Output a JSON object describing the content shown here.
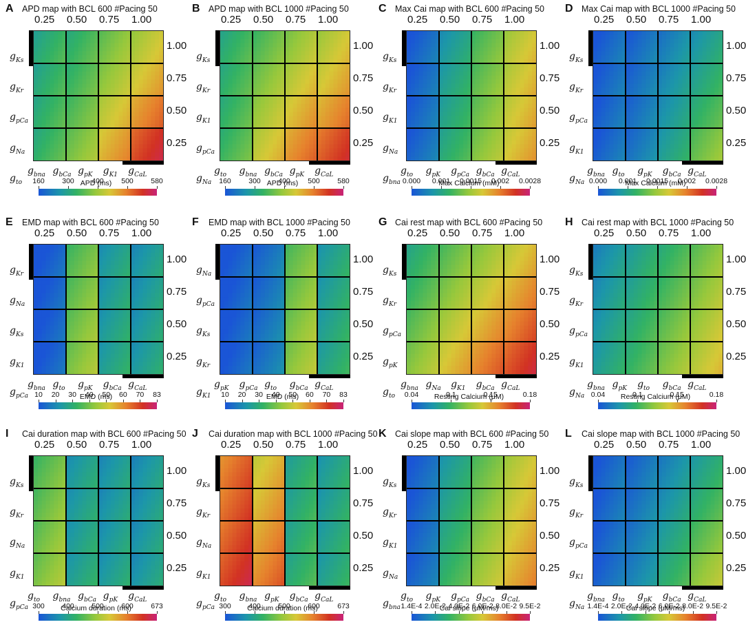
{
  "colors": {
    "blue": "#1a55d6",
    "teal": "#1f9e8a",
    "green": "#3fbf4a",
    "yellow": "#c9c13a",
    "orange": "#e07a2a",
    "red": "#cf2f22",
    "magenta": "#c7247a"
  },
  "chart_data": [
    {
      "panel": "A",
      "type": "heatmap",
      "title": "APD map with BCL 600 #Pacing 50",
      "top_ticks": [
        "0.25",
        "0.50",
        "0.75",
        "1.00"
      ],
      "right_ticks": [
        "1.00",
        "0.75",
        "0.50",
        "0.25"
      ],
      "left_vars": [
        "K",
        "s",
        "K",
        "r",
        "p",
        "Ca",
        "Na"
      ],
      "left_labels": [
        [
          "Ks"
        ],
        [
          "Kr"
        ],
        [
          "pCa"
        ],
        [
          "Na"
        ],
        [
          "to"
        ]
      ],
      "bottom_labels": [
        [
          "bna"
        ],
        [
          "bCa"
        ],
        [
          "pK"
        ],
        [
          "K1"
        ],
        [
          "CaL"
        ]
      ],
      "colorbar": {
        "label": "APD (ms)",
        "ticks": [
          "160",
          "300",
          "400",
          "500",
          "580"
        ]
      },
      "intensity": [
        [
          0.3,
          0.34,
          0.45,
          0.55
        ],
        [
          0.3,
          0.36,
          0.5,
          0.62
        ],
        [
          0.32,
          0.4,
          0.58,
          0.72
        ],
        [
          0.33,
          0.45,
          0.66,
          0.85
        ]
      ]
    },
    {
      "panel": "B",
      "type": "heatmap",
      "title": "APD map with BCL 1000 #Pacing 50",
      "top_ticks": [
        "0.25",
        "0.50",
        "0.75",
        "1.00"
      ],
      "right_ticks": [
        "1.00",
        "0.75",
        "0.50",
        "0.25"
      ],
      "left_labels": [
        [
          "Ks"
        ],
        [
          "Kr"
        ],
        [
          "K1"
        ],
        [
          "pCa"
        ],
        [
          "Na"
        ]
      ],
      "bottom_labels": [
        [
          "to"
        ],
        [
          "bna"
        ],
        [
          "bCa"
        ],
        [
          "pK"
        ],
        [
          "CaL"
        ]
      ],
      "colorbar": {
        "label": "APD (ms)",
        "ticks": [
          "160",
          "300",
          "400",
          "500",
          "580"
        ]
      },
      "intensity": [
        [
          0.32,
          0.4,
          0.5,
          0.56
        ],
        [
          0.33,
          0.46,
          0.57,
          0.62
        ],
        [
          0.34,
          0.52,
          0.64,
          0.7
        ],
        [
          0.36,
          0.58,
          0.72,
          0.82
        ]
      ]
    },
    {
      "panel": "C",
      "type": "heatmap",
      "title": "Max Cai map with BCL 600 #Pacing 50",
      "top_ticks": [
        "0.25",
        "0.50",
        "0.75",
        "1.00"
      ],
      "right_ticks": [
        "1.00",
        "0.75",
        "0.50",
        "0.25"
      ],
      "left_labels": [
        [
          "Ks"
        ],
        [
          "Kr"
        ],
        [
          "K1"
        ],
        [
          "Na"
        ],
        [
          "bna"
        ]
      ],
      "bottom_labels": [
        [
          "to"
        ],
        [
          "pK"
        ],
        [
          "pCa"
        ],
        [
          "bCa"
        ],
        [
          "CaL"
        ]
      ],
      "colorbar": {
        "label": "Max Calcium (mM)",
        "ticks": [
          "0.000",
          "0.001",
          "0.0015",
          "0.002",
          "0.0028"
        ]
      },
      "intensity": [
        [
          0.05,
          0.22,
          0.4,
          0.56
        ],
        [
          0.05,
          0.25,
          0.42,
          0.58
        ],
        [
          0.06,
          0.27,
          0.44,
          0.6
        ],
        [
          0.06,
          0.3,
          0.47,
          0.62
        ]
      ]
    },
    {
      "panel": "D",
      "type": "heatmap",
      "title": "Max Cai map with BCL 1000 #Pacing 50",
      "top_ticks": [
        "0.25",
        "0.50",
        "0.75",
        "1.00"
      ],
      "right_ticks": [
        "1.00",
        "0.75",
        "0.50",
        "0.25"
      ],
      "left_labels": [
        [
          "Ks"
        ],
        [
          "Kr"
        ],
        [
          "pCa"
        ],
        [
          "K1"
        ],
        [
          "Na"
        ]
      ],
      "bottom_labels": [
        [
          "bna"
        ],
        [
          "to"
        ],
        [
          "pK"
        ],
        [
          "bCa"
        ],
        [
          "CaL"
        ]
      ],
      "colorbar": {
        "label": "Max Calcium (mM)",
        "ticks": [
          "0.000",
          "0.001",
          "0.0015",
          "0.002",
          "0.0028"
        ]
      },
      "intensity": [
        [
          0.05,
          0.07,
          0.14,
          0.22
        ],
        [
          0.05,
          0.08,
          0.17,
          0.27
        ],
        [
          0.05,
          0.09,
          0.2,
          0.33
        ],
        [
          0.05,
          0.1,
          0.24,
          0.42
        ]
      ]
    },
    {
      "panel": "E",
      "type": "heatmap",
      "title": "EMD map with BCL 600 #Pacing 50",
      "top_ticks": [
        "0.25",
        "0.50",
        "0.75",
        "1.00"
      ],
      "right_ticks": [
        "1.00",
        "0.75",
        "0.50",
        "0.25"
      ],
      "left_labels": [
        [
          "Kr"
        ],
        [
          "Na"
        ],
        [
          "Ks"
        ],
        [
          "K1"
        ],
        [
          "pCa"
        ]
      ],
      "bottom_labels": [
        [
          "bna"
        ],
        [
          "to"
        ],
        [
          "pK"
        ],
        [
          "bCa"
        ],
        [
          "CaL"
        ]
      ],
      "colorbar": {
        "label": "EMD (ms)",
        "ticks": [
          "10",
          "20",
          "30",
          "40",
          "50",
          "60",
          "70",
          "83"
        ]
      },
      "intensity": [
        [
          0.02,
          0.4,
          0.22,
          0.2
        ],
        [
          0.02,
          0.42,
          0.22,
          0.2
        ],
        [
          0.02,
          0.44,
          0.23,
          0.21
        ],
        [
          0.02,
          0.46,
          0.24,
          0.22
        ]
      ]
    },
    {
      "panel": "F",
      "type": "heatmap",
      "title": "EMD map with BCL 1000 #Pacing 50",
      "top_ticks": [
        "0.25",
        "0.50",
        "0.75",
        "1.00"
      ],
      "right_ticks": [
        "1.00",
        "0.75",
        "0.50",
        "0.25"
      ],
      "left_labels": [
        [
          "Na"
        ],
        [
          "pCa"
        ],
        [
          "Ks"
        ],
        [
          "Kr"
        ],
        [
          "K1"
        ]
      ],
      "bottom_labels": [
        [
          "pK"
        ],
        [
          "pCa"
        ],
        [
          "to"
        ],
        [
          "bCa"
        ],
        [
          "CaL"
        ]
      ],
      "colorbar": {
        "label": "EMD (ms)",
        "ticks": [
          "10",
          "20",
          "30",
          "40",
          "50",
          "60",
          "70",
          "83"
        ]
      },
      "intensity": [
        [
          0.02,
          0.08,
          0.42,
          0.24
        ],
        [
          0.02,
          0.08,
          0.44,
          0.24
        ],
        [
          0.02,
          0.09,
          0.46,
          0.25
        ],
        [
          0.02,
          0.09,
          0.48,
          0.26
        ]
      ]
    },
    {
      "panel": "G",
      "type": "heatmap",
      "title": "Cai rest map with BCL 600 #Pacing 50",
      "top_ticks": [
        "0.25",
        "0.50",
        "0.75",
        "1.00"
      ],
      "right_ticks": [
        "1.00",
        "0.75",
        "0.50",
        "0.25"
      ],
      "left_labels": [
        [
          "Ks"
        ],
        [
          "Kr"
        ],
        [
          "pCa"
        ],
        [
          "pK"
        ],
        [
          "to"
        ]
      ],
      "bottom_labels": [
        [
          "bna"
        ],
        [
          "Na"
        ],
        [
          "K1"
        ],
        [
          "bCa"
        ],
        [
          "CaL"
        ]
      ],
      "colorbar": {
        "label": "Resting Calcium (μM)",
        "ticks": [
          "0.04",
          "0.1",
          "0.15",
          "0.18"
        ]
      },
      "intensity": [
        [
          0.32,
          0.42,
          0.5,
          0.6
        ],
        [
          0.36,
          0.48,
          0.58,
          0.68
        ],
        [
          0.42,
          0.55,
          0.66,
          0.76
        ],
        [
          0.48,
          0.62,
          0.74,
          0.84
        ]
      ]
    },
    {
      "panel": "H",
      "type": "heatmap",
      "title": "Cai rest map with BCL 1000 #Pacing 50",
      "top_ticks": [
        "0.25",
        "0.50",
        "0.75",
        "1.00"
      ],
      "right_ticks": [
        "1.00",
        "0.75",
        "0.50",
        "0.25"
      ],
      "left_labels": [
        [
          "Ks"
        ],
        [
          "Kr"
        ],
        [
          "pCa"
        ],
        [
          "K1"
        ],
        [
          "Na"
        ]
      ],
      "bottom_labels": [
        [
          "bna"
        ],
        [
          "pK"
        ],
        [
          "to"
        ],
        [
          "bCa"
        ],
        [
          "CaL"
        ]
      ],
      "colorbar": {
        "label": "Resting Calcium (μM)",
        "ticks": [
          "0.04",
          "0.1",
          "0.15",
          "0.18"
        ]
      },
      "intensity": [
        [
          0.18,
          0.26,
          0.34,
          0.44
        ],
        [
          0.2,
          0.28,
          0.38,
          0.48
        ],
        [
          0.22,
          0.31,
          0.42,
          0.52
        ],
        [
          0.24,
          0.34,
          0.46,
          0.56
        ]
      ]
    },
    {
      "panel": "I",
      "type": "heatmap",
      "title": "Cai duration map with BCL 600 #Pacing 50",
      "top_ticks": [
        "0.25",
        "0.50",
        "0.75",
        "1.00"
      ],
      "right_ticks": [
        "1.00",
        "0.75",
        "0.50",
        "0.25"
      ],
      "left_labels": [
        [
          "Ks"
        ],
        [
          "Kr"
        ],
        [
          "Na"
        ],
        [
          "K1"
        ],
        [
          "pCa"
        ]
      ],
      "bottom_labels": [
        [
          "to"
        ],
        [
          "bna"
        ],
        [
          "bCa"
        ],
        [
          "pK"
        ],
        [
          "CaL"
        ]
      ],
      "colorbar": {
        "label": "Calcium duration (ms)",
        "ticks": [
          "300",
          "400",
          "500",
          "600",
          "673"
        ]
      },
      "intensity": [
        [
          0.4,
          0.22,
          0.2,
          0.19
        ],
        [
          0.42,
          0.22,
          0.2,
          0.19
        ],
        [
          0.44,
          0.23,
          0.21,
          0.2
        ],
        [
          0.46,
          0.24,
          0.22,
          0.2
        ]
      ]
    },
    {
      "panel": "J",
      "type": "heatmap",
      "title": "Cai duration map with BCL 1000 #Pacing 50",
      "top_ticks": [
        "0.25",
        "0.50",
        "0.75",
        "1.00"
      ],
      "right_ticks": [
        "1.00",
        "0.75",
        "0.50",
        "0.25"
      ],
      "left_labels": [
        [
          "Ks"
        ],
        [
          "Kr"
        ],
        [
          "Na"
        ],
        [
          "K1"
        ],
        [
          "pCa"
        ]
      ],
      "bottom_labels": [
        [
          "to"
        ],
        [
          "bna"
        ],
        [
          "pK"
        ],
        [
          "bCa"
        ],
        [
          "CaL"
        ]
      ],
      "colorbar": {
        "label": "Calcium duration (ms)",
        "ticks": [
          "300",
          "400",
          "500",
          "600",
          "673"
        ]
      },
      "intensity": [
        [
          0.78,
          0.62,
          0.28,
          0.24
        ],
        [
          0.8,
          0.66,
          0.28,
          0.24
        ],
        [
          0.82,
          0.7,
          0.29,
          0.25
        ],
        [
          0.86,
          0.74,
          0.3,
          0.25
        ]
      ]
    },
    {
      "panel": "K",
      "type": "heatmap",
      "title": "Cai slope map with BCL 600 #Pacing 50",
      "top_ticks": [
        "0.25",
        "0.50",
        "0.75",
        "1.00"
      ],
      "right_ticks": [
        "1.00",
        "0.75",
        "0.50",
        "0.25"
      ],
      "left_labels": [
        [
          "Ks"
        ],
        [
          "Kr"
        ],
        [
          "K1"
        ],
        [
          "Na"
        ],
        [
          "bna"
        ]
      ],
      "bottom_labels": [
        [
          "to"
        ],
        [
          "pK"
        ],
        [
          "pCa"
        ],
        [
          "bCa"
        ],
        [
          "CaL"
        ]
      ],
      "colorbar": {
        "label": "Cai slope (μM/ms)",
        "ticks": [
          "1.4E-4",
          "2.0E-2",
          "4.0E-2",
          "6.0E-2",
          "8.0E-2",
          "9.5E-2"
        ]
      },
      "intensity": [
        [
          0.05,
          0.24,
          0.42,
          0.56
        ],
        [
          0.05,
          0.27,
          0.45,
          0.59
        ],
        [
          0.06,
          0.3,
          0.48,
          0.62
        ],
        [
          0.06,
          0.33,
          0.51,
          0.66
        ]
      ]
    },
    {
      "panel": "L",
      "type": "heatmap",
      "title": "Cai slope map with BCL 1000 #Pacing 50",
      "top_ticks": [
        "0.25",
        "0.50",
        "0.75",
        "1.00"
      ],
      "right_ticks": [
        "1.00",
        "0.75",
        "0.50",
        "0.25"
      ],
      "left_labels": [
        [
          "Ks"
        ],
        [
          "Kr"
        ],
        [
          "pCa"
        ],
        [
          "K1"
        ],
        [
          "Na"
        ]
      ],
      "bottom_labels": [
        [
          "bna"
        ],
        [
          "to"
        ],
        [
          "pK"
        ],
        [
          "bCa"
        ],
        [
          "CaL"
        ]
      ],
      "colorbar": {
        "label": "Cai slope (μM/ms)",
        "ticks": [
          "1.4E-4",
          "2.0E-2",
          "4.0E-2",
          "6.0E-2",
          "8.0E-2",
          "9.5E-2"
        ]
      },
      "intensity": [
        [
          0.05,
          0.08,
          0.16,
          0.26
        ],
        [
          0.05,
          0.1,
          0.2,
          0.32
        ],
        [
          0.05,
          0.12,
          0.25,
          0.4
        ],
        [
          0.05,
          0.14,
          0.3,
          0.48
        ]
      ]
    }
  ]
}
